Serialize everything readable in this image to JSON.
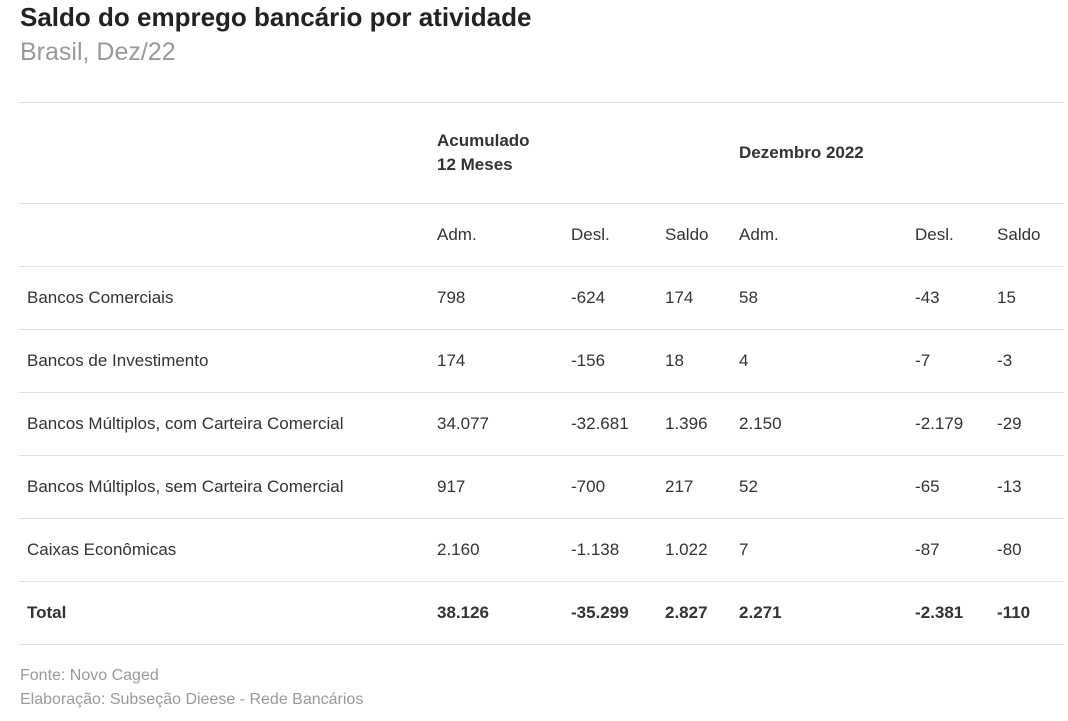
{
  "title": "Saldo do emprego bancário por atividade",
  "subtitle": "Brasil, Dez/22",
  "chart_data": {
    "type": "table",
    "group_headers": [
      "Acumulado 12 Meses",
      "Dezembro 2022"
    ],
    "columns": [
      "Adm.",
      "Desl.",
      "Saldo",
      "Adm.",
      "Desl.",
      "Saldo"
    ],
    "rows": [
      {
        "label": "Bancos Comerciais",
        "values": [
          "798",
          "-624",
          "174",
          "58",
          "-43",
          "15"
        ]
      },
      {
        "label": "Bancos de Investimento",
        "values": [
          "174",
          "-156",
          "18",
          "4",
          "-7",
          "-3"
        ]
      },
      {
        "label": "Bancos Múltiplos, com Carteira Comercial",
        "values": [
          "34.077",
          "-32.681",
          "1.396",
          "2.150",
          "-2.179",
          "-29"
        ]
      },
      {
        "label": "Bancos Múltiplos, sem Carteira Comercial",
        "values": [
          "917",
          "-700",
          "217",
          "52",
          "-65",
          "-13"
        ]
      },
      {
        "label": "Caixas Econômicas",
        "values": [
          "2.160",
          "-1.138",
          "1.022",
          "7",
          "-87",
          "-80"
        ]
      },
      {
        "label": "Total",
        "values": [
          "38.126",
          "-35.299",
          "2.827",
          "2.271",
          "-2.381",
          "-110"
        ]
      }
    ]
  },
  "footer": {
    "source": "Fonte: Novo Caged",
    "credit": "Elaboração: Subseção Dieese - Rede Bancários"
  }
}
